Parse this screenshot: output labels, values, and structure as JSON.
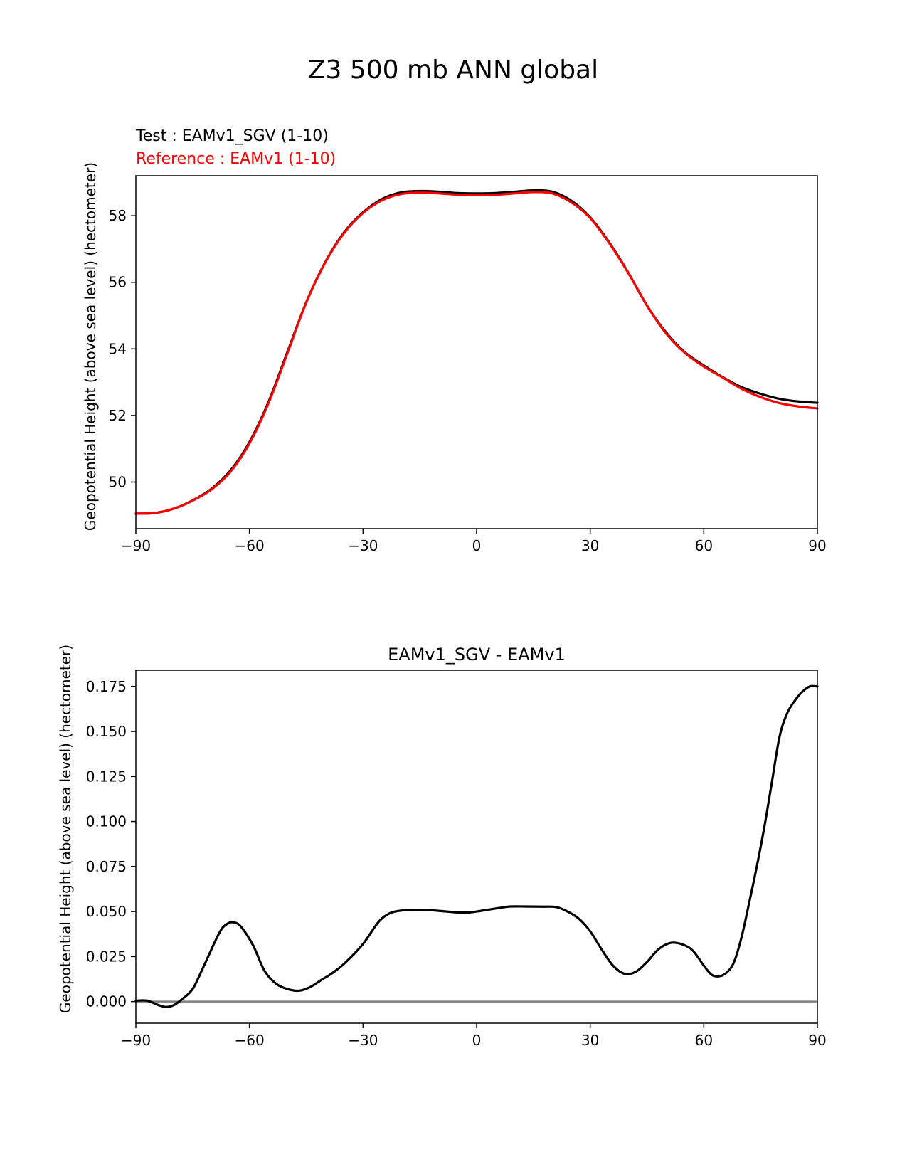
{
  "figure_title": "Z3 500 mb ANN global",
  "colors": {
    "test": "#000000",
    "reference": "#ff0000",
    "zero_line": "#808080",
    "axis": "#000000"
  },
  "chart_data": [
    {
      "type": "line",
      "legend_test": "Test : EAMv1_SGV (1-10)",
      "legend_reference": "Reference : EAMv1 (1-10)",
      "xlabel": "",
      "ylabel": "Geopotential Height (above sea level) (hectometer)",
      "xlim": [
        -90,
        90
      ],
      "ylim": [
        48.6,
        59.2
      ],
      "xticks": [
        -90,
        -60,
        -30,
        0,
        30,
        60,
        90
      ],
      "xtick_labels": [
        "−90",
        "−60",
        "−30",
        "0",
        "30",
        "60",
        "90"
      ],
      "yticks": [
        50,
        52,
        54,
        56,
        58
      ],
      "ytick_labels": [
        "50",
        "52",
        "54",
        "56",
        "58"
      ],
      "x": [
        -90,
        -85,
        -80,
        -75,
        -70,
        -65,
        -60,
        -55,
        -50,
        -45,
        -40,
        -35,
        -30,
        -25,
        -20,
        -15,
        -10,
        -5,
        0,
        5,
        10,
        15,
        20,
        25,
        30,
        35,
        40,
        45,
        50,
        55,
        60,
        65,
        70,
        75,
        80,
        85,
        90
      ],
      "series": [
        {
          "name": "Test : EAMv1_SGV (1-10)",
          "values": [
            49.05,
            49.07,
            49.2,
            49.45,
            49.8,
            50.35,
            51.2,
            52.4,
            53.9,
            55.4,
            56.6,
            57.5,
            58.1,
            58.5,
            58.7,
            58.74,
            58.72,
            58.68,
            58.67,
            58.68,
            58.72,
            58.76,
            58.72,
            58.45,
            57.95,
            57.2,
            56.3,
            55.3,
            54.5,
            53.9,
            53.5,
            53.15,
            52.85,
            52.65,
            52.5,
            52.42,
            52.38
          ]
        },
        {
          "name": "Reference : EAMv1 (1-10)",
          "values": [
            49.05,
            49.07,
            49.2,
            49.44,
            49.78,
            50.31,
            51.16,
            52.36,
            53.86,
            55.39,
            56.59,
            57.48,
            58.08,
            58.46,
            58.65,
            58.69,
            58.67,
            58.63,
            58.62,
            58.63,
            58.67,
            58.71,
            58.67,
            58.4,
            57.93,
            57.18,
            56.29,
            55.3,
            54.47,
            53.88,
            53.47,
            53.14,
            52.8,
            52.55,
            52.37,
            52.27,
            52.21
          ]
        }
      ]
    },
    {
      "type": "line",
      "title": "EAMv1_SGV - EAMv1",
      "xlabel": "",
      "ylabel": "Geopotential Height (above sea level) (hectometer)",
      "xlim": [
        -90,
        90
      ],
      "ylim": [
        -0.012,
        0.184
      ],
      "xticks": [
        -90,
        -60,
        -30,
        0,
        30,
        60,
        90
      ],
      "xtick_labels": [
        "−90",
        "−60",
        "−30",
        "0",
        "30",
        "60",
        "90"
      ],
      "yticks": [
        0.0,
        0.025,
        0.05,
        0.075,
        0.1,
        0.125,
        0.15,
        0.175
      ],
      "ytick_labels": [
        "0.000",
        "0.025",
        "0.050",
        "0.075",
        "0.100",
        "0.125",
        "0.150",
        "0.175"
      ],
      "zero_line": 0,
      "series": [
        {
          "name": "EAMv1_SGV - EAMv1",
          "x": [
            -90,
            -87,
            -84,
            -82,
            -80,
            -78,
            -75,
            -72,
            -68,
            -66,
            -64,
            -62,
            -59,
            -56,
            -53,
            -50,
            -47,
            -44,
            -41,
            -38,
            -35,
            -30,
            -26,
            -23,
            -20,
            -17,
            -13,
            -9,
            -5,
            -2,
            0,
            3,
            6,
            9,
            13,
            17,
            21,
            24,
            27,
            30,
            33,
            36,
            39,
            42,
            45,
            48,
            51,
            54,
            57,
            60,
            62,
            64,
            66,
            68,
            70,
            72,
            74,
            76,
            78,
            80,
            82,
            84,
            86,
            88,
            90
          ],
          "values": [
            0.0005,
            0.0005,
            -0.002,
            -0.003,
            -0.002,
            0.001,
            0.007,
            0.02,
            0.038,
            0.043,
            0.044,
            0.041,
            0.031,
            0.017,
            0.01,
            0.007,
            0.006,
            0.008,
            0.012,
            0.016,
            0.021,
            0.032,
            0.044,
            0.049,
            0.0505,
            0.0508,
            0.0508,
            0.0502,
            0.0495,
            0.0495,
            0.05,
            0.051,
            0.052,
            0.0528,
            0.0528,
            0.0527,
            0.0525,
            0.05,
            0.046,
            0.039,
            0.029,
            0.02,
            0.0155,
            0.0165,
            0.022,
            0.029,
            0.0325,
            0.032,
            0.0285,
            0.02,
            0.015,
            0.014,
            0.016,
            0.022,
            0.036,
            0.055,
            0.075,
            0.097,
            0.122,
            0.147,
            0.16,
            0.167,
            0.172,
            0.175,
            0.175
          ]
        }
      ]
    }
  ]
}
